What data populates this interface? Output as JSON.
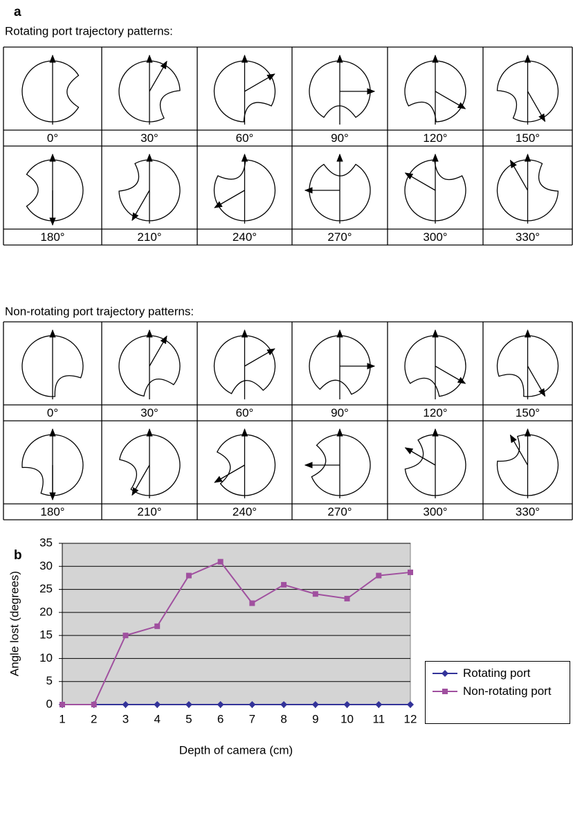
{
  "panel_a": {
    "label": "a",
    "tables": [
      {
        "title": "Rotating port trajectory patterns:",
        "angles": [
          "0°",
          "30°",
          "60°",
          "90°",
          "120°",
          "150°",
          "180°",
          "210°",
          "240°",
          "270°",
          "300°",
          "330°"
        ]
      },
      {
        "title": "Non-rotating port trajectory patterns:",
        "angles": [
          "0°",
          "30°",
          "60°",
          "90°",
          "120°",
          "150°",
          "180°",
          "210°",
          "240°",
          "270°",
          "300°",
          "330°"
        ]
      }
    ]
  },
  "panel_b": {
    "label": "b"
  },
  "chart_data": {
    "type": "line",
    "x_label": "Depth of camera (cm)",
    "y_label": "Angle lost (degrees)",
    "x": [
      1,
      2,
      3,
      4,
      5,
      6,
      7,
      8,
      9,
      10,
      11,
      12
    ],
    "series": [
      {
        "name": "Rotating port",
        "color": "#333399",
        "marker": "diamond",
        "values": [
          0,
          0,
          0,
          0,
          0,
          0,
          0,
          0,
          0,
          0,
          0,
          0
        ]
      },
      {
        "name": "Non-rotating port",
        "color": "#a0509f",
        "marker": "square",
        "values": [
          0,
          0,
          15,
          17,
          28,
          31,
          22,
          26,
          24,
          23,
          28,
          28.7
        ]
      }
    ],
    "xlim": [
      1,
      12
    ],
    "xticks": [
      1,
      2,
      3,
      4,
      5,
      6,
      7,
      8,
      9,
      10,
      11,
      12
    ],
    "ylim": [
      0,
      35
    ],
    "yticks": [
      0,
      5,
      10,
      15,
      20,
      25,
      30,
      35
    ],
    "grid": true,
    "plot_background": "#d4d4d4",
    "legend": "right"
  }
}
